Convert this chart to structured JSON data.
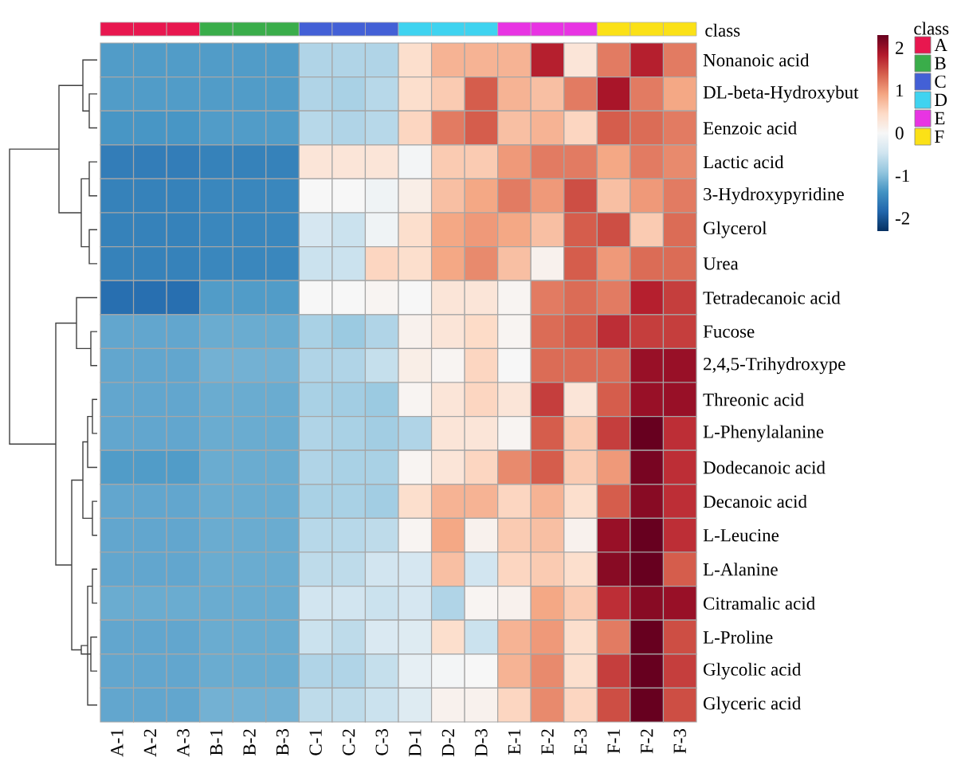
{
  "chart_data": {
    "type": "heatmap",
    "categories": [
      "A-1",
      "A-2",
      "A-3",
      "B-1",
      "B-2",
      "B-3",
      "C-1",
      "C-2",
      "C-3",
      "D-1",
      "D-2",
      "D-3",
      "E-1",
      "E-2",
      "E-3",
      "F-1",
      "F-2",
      "F-3"
    ],
    "y_categories": [
      "Nonanoic acid",
      "DL-beta-Hydroxybut",
      "Eenzoic acid",
      "Lactic acid",
      "3-Hydroxypyridine",
      "Glycerol",
      "Urea",
      "Tetradecanoic acid",
      "Fucose",
      "2,4,5-Trihydroxype",
      "Threonic acid",
      "L-Phenylalanine",
      "Dodecanoic acid",
      "Decanoic acid",
      "L-Leucine",
      "L-Alanine",
      "Citramalic acid",
      "L-Proline",
      "Glycolic acid",
      "Glyceric acid"
    ],
    "cells": [
      [
        -1.3,
        -1.3,
        -1.3,
        -1.3,
        -1.3,
        -1.3,
        -0.7,
        -0.7,
        -0.7,
        0.4,
        0.8,
        0.8,
        0.8,
        1.8,
        0.3,
        1.2,
        1.8,
        1.2
      ],
      [
        -1.3,
        -1.3,
        -1.3,
        -1.3,
        -1.3,
        -1.3,
        -0.7,
        -0.75,
        -0.65,
        0.4,
        0.6,
        1.4,
        0.8,
        0.7,
        1.2,
        1.9,
        1.2,
        0.9
      ],
      [
        -1.35,
        -1.35,
        -1.35,
        -1.3,
        -1.3,
        -1.3,
        -0.65,
        -0.7,
        -0.65,
        0.5,
        1.2,
        1.4,
        0.7,
        0.8,
        0.5,
        1.4,
        1.3,
        1.2
      ],
      [
        -1.6,
        -1.6,
        -1.6,
        -1.55,
        -1.55,
        -1.55,
        0.3,
        0.3,
        0.3,
        -0.05,
        0.6,
        0.6,
        1.0,
        1.2,
        1.2,
        0.9,
        1.2,
        1.1
      ],
      [
        -1.55,
        -1.55,
        -1.55,
        -1.5,
        -1.5,
        -1.5,
        0.0,
        0.0,
        -0.1,
        0.15,
        0.7,
        0.9,
        1.2,
        1.0,
        1.5,
        0.7,
        1.0,
        1.2
      ],
      [
        -1.55,
        -1.55,
        -1.55,
        -1.5,
        -1.5,
        -1.5,
        -0.4,
        -0.5,
        -0.1,
        0.4,
        0.9,
        1.0,
        0.9,
        0.7,
        1.4,
        1.5,
        0.6,
        1.3
      ],
      [
        -1.55,
        -1.55,
        -1.55,
        -1.5,
        -1.5,
        -1.5,
        -0.5,
        -0.5,
        0.5,
        0.4,
        0.9,
        1.1,
        0.7,
        0.1,
        1.4,
        1.0,
        1.3,
        1.3
      ],
      [
        -1.75,
        -1.75,
        -1.75,
        -1.3,
        -1.3,
        -1.3,
        0.0,
        0.0,
        0.05,
        0.0,
        0.3,
        0.3,
        0.05,
        1.2,
        1.3,
        1.2,
        1.8,
        1.6
      ],
      [
        -1.2,
        -1.2,
        -1.2,
        -1.15,
        -1.15,
        -1.15,
        -0.75,
        -0.85,
        -0.7,
        0.1,
        0.3,
        0.45,
        0.05,
        1.3,
        1.4,
        1.7,
        1.6,
        1.6
      ],
      [
        -1.2,
        -1.2,
        -1.2,
        -1.1,
        -1.1,
        -1.1,
        -0.7,
        -0.7,
        -0.55,
        0.15,
        0.05,
        0.5,
        0.0,
        1.3,
        1.3,
        1.3,
        2.0,
        2.0
      ],
      [
        -1.2,
        -1.2,
        -1.2,
        -1.15,
        -1.15,
        -1.15,
        -0.75,
        -0.8,
        -0.85,
        0.05,
        0.3,
        0.5,
        0.3,
        1.6,
        0.3,
        1.4,
        2.0,
        2.0
      ],
      [
        -1.2,
        -1.2,
        -1.2,
        -1.15,
        -1.15,
        -1.15,
        -0.7,
        -0.75,
        -0.8,
        -0.7,
        0.3,
        0.3,
        0.05,
        1.4,
        0.6,
        1.6,
        2.3,
        1.7
      ],
      [
        -1.3,
        -1.3,
        -1.3,
        -1.15,
        -1.15,
        -1.15,
        -0.7,
        -0.75,
        -0.75,
        0.05,
        0.3,
        0.5,
        1.1,
        1.4,
        0.6,
        1.0,
        2.2,
        1.7
      ],
      [
        -1.2,
        -1.2,
        -1.2,
        -1.15,
        -1.15,
        -1.15,
        -0.75,
        -0.75,
        -0.8,
        0.4,
        0.8,
        0.8,
        0.5,
        0.8,
        0.4,
        1.4,
        2.1,
        1.7
      ],
      [
        -1.2,
        -1.2,
        -1.2,
        -1.15,
        -1.15,
        -1.15,
        -0.65,
        -0.65,
        -0.6,
        0.05,
        0.9,
        0.1,
        0.6,
        0.7,
        0.1,
        2.0,
        2.3,
        1.7
      ],
      [
        -1.2,
        -1.2,
        -1.2,
        -1.15,
        -1.15,
        -1.15,
        -0.6,
        -0.6,
        -0.45,
        -0.4,
        0.7,
        -0.45,
        0.5,
        0.6,
        0.4,
        2.1,
        2.4,
        1.4
      ],
      [
        -1.15,
        -1.15,
        -1.15,
        -1.15,
        -1.15,
        -1.15,
        -0.45,
        -0.45,
        -0.5,
        -0.4,
        -0.7,
        0.05,
        0.1,
        0.9,
        0.6,
        1.7,
        2.1,
        2.0
      ],
      [
        -1.2,
        -1.2,
        -1.2,
        -1.15,
        -1.15,
        -1.15,
        -0.5,
        -0.6,
        -0.35,
        -0.3,
        0.4,
        -0.5,
        0.8,
        1.0,
        0.4,
        1.2,
        2.4,
        1.5
      ],
      [
        -1.2,
        -1.2,
        -1.2,
        -1.15,
        -1.15,
        -1.15,
        -0.7,
        -0.7,
        -0.55,
        -0.2,
        -0.05,
        0.0,
        0.8,
        1.1,
        0.4,
        1.6,
        2.3,
        1.6
      ],
      [
        -1.2,
        -1.2,
        -1.2,
        -1.1,
        -1.1,
        -1.1,
        -0.6,
        -0.6,
        -0.5,
        -0.3,
        0.1,
        0.1,
        0.5,
        1.1,
        0.5,
        1.5,
        2.4,
        1.5
      ]
    ],
    "clim": [
      -2.3,
      2.3
    ],
    "cticks": [
      -2,
      -1,
      0,
      1,
      2
    ],
    "legend_title": "class",
    "annotations": [
      "class",
      "A",
      "B",
      "C",
      "D",
      "E",
      "F"
    ],
    "colors": [
      "#e8174f",
      "#3aad4a",
      "#4360d6",
      "#3fd3f0",
      "#e834e3",
      "#fbe117"
    ]
  }
}
